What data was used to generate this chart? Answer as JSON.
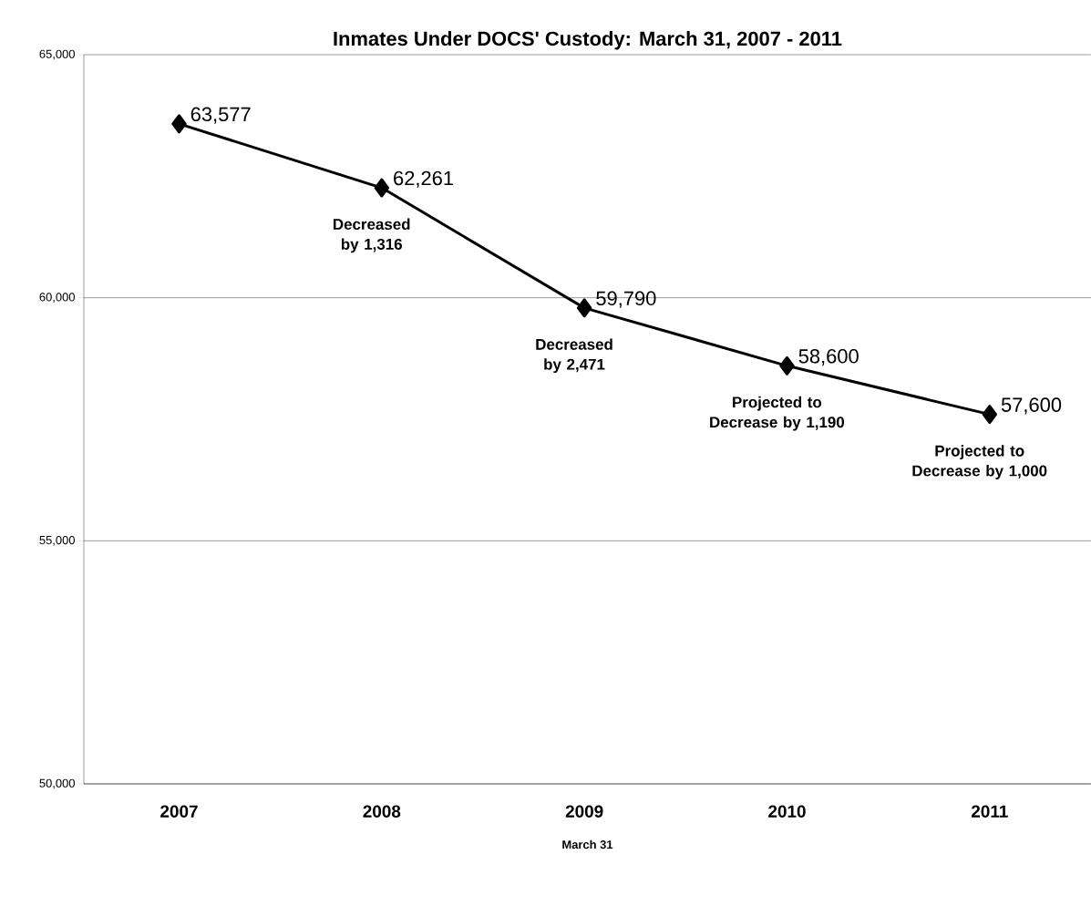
{
  "chart_data": {
    "type": "line",
    "title": "Inmates Under DOCS' Custody: March 31, 2007 - 2011",
    "xlabel": "March 31",
    "categories": [
      "2007",
      "2008",
      "2009",
      "2010",
      "2011"
    ],
    "values": [
      63577,
      62261,
      59790,
      58600,
      57600
    ],
    "value_labels": [
      "63,577",
      "62,261",
      "59,790",
      "58,600",
      "57,600"
    ],
    "color": "#000000",
    "marker": "diamond",
    "line_style": "solid",
    "grid": "y",
    "ylim": [
      50000,
      65000
    ],
    "yticks": [
      {
        "value": 50000,
        "label": "50,000"
      },
      {
        "value": 55000,
        "label": "55,000"
      },
      {
        "value": 60000,
        "label": "60,000"
      },
      {
        "value": 65000,
        "label": "65,000"
      }
    ],
    "annotations": [
      "Decreased by 1,316",
      "Decreased by 2,471",
      "Projected to Decrease by 1,190",
      "Projected to Decrease by 1,000"
    ]
  }
}
